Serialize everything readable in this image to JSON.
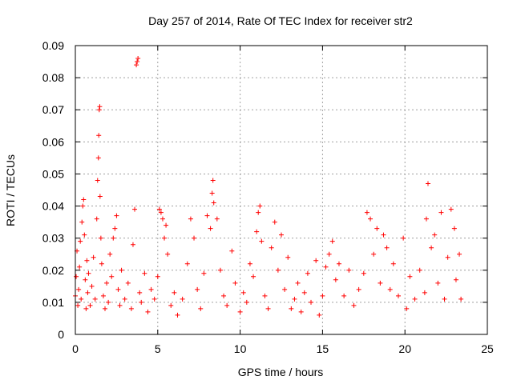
{
  "chart_data": {
    "type": "scatter",
    "title": "Day 257 of 2014, Rate Of TEC Index for receiver str2",
    "xlabel": "GPS time / hours",
    "ylabel": "ROTI / TECUs",
    "xlim": [
      0,
      25
    ],
    "ylim": [
      0,
      0.09
    ],
    "x_ticks": [
      0,
      5,
      10,
      15,
      20,
      25
    ],
    "y_ticks": [
      0,
      0.01,
      0.02,
      0.03,
      0.04,
      0.05,
      0.06,
      0.07,
      0.08,
      0.09
    ],
    "x_tick_labels": [
      "0",
      "5",
      "10",
      "15",
      "20",
      "25"
    ],
    "y_tick_labels": [
      "0",
      "0.01",
      "0.02",
      "0.03",
      "0.04",
      "0.05",
      "0.06",
      "0.07",
      "0.08",
      "0.09"
    ],
    "grid": true,
    "marker": "plus",
    "color": "#ff0000",
    "series": [
      {
        "points": [
          [
            0.0,
            0.012
          ],
          [
            0.05,
            0.018
          ],
          [
            0.1,
            0.026
          ],
          [
            0.15,
            0.009
          ],
          [
            0.2,
            0.014
          ],
          [
            0.25,
            0.021
          ],
          [
            0.3,
            0.029
          ],
          [
            0.35,
            0.011
          ],
          [
            0.4,
            0.035
          ],
          [
            0.45,
            0.04
          ],
          [
            0.5,
            0.042
          ],
          [
            0.55,
            0.031
          ],
          [
            0.6,
            0.017
          ],
          [
            0.65,
            0.008
          ],
          [
            0.7,
            0.023
          ],
          [
            0.75,
            0.013
          ],
          [
            0.8,
            0.019
          ],
          [
            0.9,
            0.009
          ],
          [
            1.0,
            0.015
          ],
          [
            1.1,
            0.024
          ],
          [
            1.2,
            0.011
          ],
          [
            1.3,
            0.036
          ],
          [
            1.35,
            0.048
          ],
          [
            1.4,
            0.055
          ],
          [
            1.42,
            0.062
          ],
          [
            1.45,
            0.07
          ],
          [
            1.48,
            0.071
          ],
          [
            1.5,
            0.043
          ],
          [
            1.55,
            0.03
          ],
          [
            1.6,
            0.022
          ],
          [
            1.7,
            0.012
          ],
          [
            1.8,
            0.008
          ],
          [
            1.9,
            0.016
          ],
          [
            2.0,
            0.01
          ],
          [
            2.1,
            0.025
          ],
          [
            2.2,
            0.018
          ],
          [
            2.3,
            0.03
          ],
          [
            2.4,
            0.033
          ],
          [
            2.5,
            0.037
          ],
          [
            2.6,
            0.014
          ],
          [
            2.7,
            0.009
          ],
          [
            2.8,
            0.02
          ],
          [
            3.0,
            0.011
          ],
          [
            3.2,
            0.016
          ],
          [
            3.4,
            0.008
          ],
          [
            3.5,
            0.028
          ],
          [
            3.6,
            0.039
          ],
          [
            3.7,
            0.084
          ],
          [
            3.75,
            0.085
          ],
          [
            3.8,
            0.086
          ],
          [
            3.9,
            0.013
          ],
          [
            4.0,
            0.01
          ],
          [
            4.2,
            0.019
          ],
          [
            4.4,
            0.007
          ],
          [
            4.6,
            0.014
          ],
          [
            4.8,
            0.011
          ],
          [
            5.0,
            0.018
          ],
          [
            5.1,
            0.039
          ],
          [
            5.2,
            0.038
          ],
          [
            5.3,
            0.036
          ],
          [
            5.4,
            0.03
          ],
          [
            5.5,
            0.034
          ],
          [
            5.6,
            0.025
          ],
          [
            5.8,
            0.009
          ],
          [
            6.0,
            0.013
          ],
          [
            6.2,
            0.006
          ],
          [
            6.5,
            0.011
          ],
          [
            6.8,
            0.022
          ],
          [
            7.0,
            0.036
          ],
          [
            7.2,
            0.03
          ],
          [
            7.4,
            0.014
          ],
          [
            7.6,
            0.008
          ],
          [
            7.8,
            0.019
          ],
          [
            8.0,
            0.037
          ],
          [
            8.2,
            0.033
          ],
          [
            8.3,
            0.044
          ],
          [
            8.35,
            0.048
          ],
          [
            8.4,
            0.041
          ],
          [
            8.6,
            0.036
          ],
          [
            8.8,
            0.02
          ],
          [
            9.0,
            0.012
          ],
          [
            9.2,
            0.009
          ],
          [
            9.5,
            0.026
          ],
          [
            9.7,
            0.016
          ],
          [
            10.0,
            0.007
          ],
          [
            10.2,
            0.013
          ],
          [
            10.4,
            0.01
          ],
          [
            10.6,
            0.022
          ],
          [
            10.8,
            0.018
          ],
          [
            11.0,
            0.032
          ],
          [
            11.1,
            0.038
          ],
          [
            11.2,
            0.04
          ],
          [
            11.3,
            0.029
          ],
          [
            11.5,
            0.012
          ],
          [
            11.7,
            0.008
          ],
          [
            11.9,
            0.027
          ],
          [
            12.1,
            0.035
          ],
          [
            12.3,
            0.02
          ],
          [
            12.5,
            0.031
          ],
          [
            12.7,
            0.014
          ],
          [
            12.9,
            0.024
          ],
          [
            13.1,
            0.008
          ],
          [
            13.3,
            0.011
          ],
          [
            13.5,
            0.016
          ],
          [
            13.7,
            0.007
          ],
          [
            13.9,
            0.013
          ],
          [
            14.1,
            0.019
          ],
          [
            14.3,
            0.01
          ],
          [
            14.6,
            0.023
          ],
          [
            14.8,
            0.006
          ],
          [
            15.0,
            0.012
          ],
          [
            15.2,
            0.021
          ],
          [
            15.4,
            0.025
          ],
          [
            15.6,
            0.029
          ],
          [
            15.8,
            0.017
          ],
          [
            16.0,
            0.022
          ],
          [
            16.3,
            0.012
          ],
          [
            16.6,
            0.02
          ],
          [
            16.9,
            0.009
          ],
          [
            17.2,
            0.014
          ],
          [
            17.5,
            0.019
          ],
          [
            17.7,
            0.038
          ],
          [
            17.9,
            0.036
          ],
          [
            18.1,
            0.025
          ],
          [
            18.3,
            0.033
          ],
          [
            18.5,
            0.016
          ],
          [
            18.7,
            0.031
          ],
          [
            18.9,
            0.027
          ],
          [
            19.1,
            0.014
          ],
          [
            19.3,
            0.022
          ],
          [
            19.6,
            0.012
          ],
          [
            19.9,
            0.03
          ],
          [
            20.1,
            0.008
          ],
          [
            20.3,
            0.018
          ],
          [
            20.6,
            0.011
          ],
          [
            20.9,
            0.02
          ],
          [
            21.2,
            0.013
          ],
          [
            21.3,
            0.036
          ],
          [
            21.4,
            0.047
          ],
          [
            21.6,
            0.027
          ],
          [
            21.8,
            0.031
          ],
          [
            22.0,
            0.016
          ],
          [
            22.2,
            0.038
          ],
          [
            22.4,
            0.011
          ],
          [
            22.6,
            0.024
          ],
          [
            22.8,
            0.039
          ],
          [
            23.0,
            0.033
          ],
          [
            23.1,
            0.017
          ],
          [
            23.3,
            0.025
          ],
          [
            23.4,
            0.011
          ]
        ]
      }
    ]
  }
}
